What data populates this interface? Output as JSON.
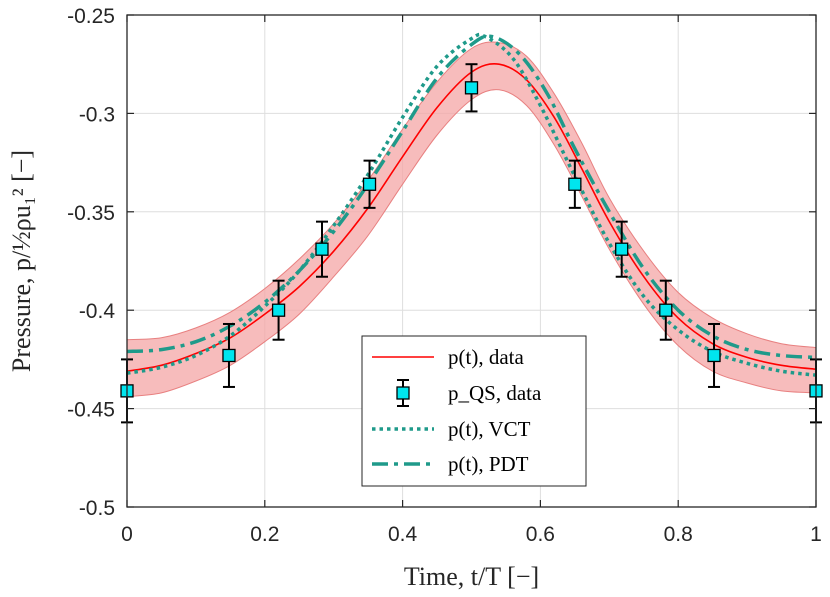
{
  "chart_data": {
    "type": "line",
    "xlabel": "Time, t/T [−]",
    "ylabel": "Pressure, p/½ρu₁² [−]",
    "xlim": [
      0,
      1
    ],
    "ylim": [
      -0.5,
      -0.25
    ],
    "xticks": [
      "0",
      "0.2",
      "0.4",
      "0.6",
      "0.8",
      "1"
    ],
    "yticks": [
      "-0.25",
      "-0.3",
      "-0.35",
      "-0.4",
      "-0.45",
      "-0.5"
    ],
    "grid": true,
    "legend_position": "bottom-center",
    "colors": {
      "data_line": "#ff0000",
      "band_fill": "#f4a5a5",
      "band_edge": "#e88080",
      "model": "#1f9a8a",
      "marker_face": "#00e5ee",
      "errorbar": "#000000"
    },
    "series": [
      {
        "name": "p(t), data",
        "style": "solid",
        "x": [
          0,
          0.05,
          0.1,
          0.15,
          0.2,
          0.25,
          0.3,
          0.35,
          0.4,
          0.45,
          0.5,
          0.54,
          0.58,
          0.62,
          0.66,
          0.7,
          0.75,
          0.8,
          0.85,
          0.9,
          0.95,
          1.0
        ],
        "y": [
          -0.431,
          -0.428,
          -0.422,
          -0.414,
          -0.402,
          -0.388,
          -0.37,
          -0.348,
          -0.322,
          -0.297,
          -0.279,
          -0.275,
          -0.283,
          -0.302,
          -0.328,
          -0.355,
          -0.383,
          -0.404,
          -0.417,
          -0.424,
          -0.428,
          -0.43
        ],
        "band_x": [
          0,
          0.05,
          0.1,
          0.15,
          0.2,
          0.25,
          0.3,
          0.35,
          0.4,
          0.45,
          0.5,
          0.54,
          0.58,
          0.62,
          0.66,
          0.7,
          0.75,
          0.8,
          0.85,
          0.9,
          0.95,
          1.0
        ],
        "band_upper": [
          -0.415,
          -0.414,
          -0.409,
          -0.401,
          -0.389,
          -0.374,
          -0.356,
          -0.334,
          -0.308,
          -0.284,
          -0.267,
          -0.264,
          -0.271,
          -0.29,
          -0.315,
          -0.343,
          -0.37,
          -0.391,
          -0.404,
          -0.412,
          -0.417,
          -0.419
        ],
        "band_lower": [
          -0.444,
          -0.442,
          -0.436,
          -0.428,
          -0.416,
          -0.402,
          -0.383,
          -0.362,
          -0.336,
          -0.311,
          -0.293,
          -0.288,
          -0.296,
          -0.316,
          -0.342,
          -0.369,
          -0.397,
          -0.418,
          -0.431,
          -0.437,
          -0.441,
          -0.442
        ]
      },
      {
        "name": "p_QS, data",
        "style": "markers",
        "x": [
          0,
          0.148,
          0.22,
          0.283,
          0.352,
          0.5,
          0.65,
          0.718,
          0.782,
          0.852,
          1.0
        ],
        "y": [
          -0.441,
          -0.423,
          -0.4,
          -0.369,
          -0.336,
          -0.287,
          -0.336,
          -0.369,
          -0.4,
          -0.423,
          -0.441
        ],
        "err": [
          0.016,
          0.016,
          0.015,
          0.014,
          0.012,
          0.012,
          0.012,
          0.014,
          0.015,
          0.016,
          0.016
        ]
      },
      {
        "name": "p(t), VCT",
        "style": "dotted",
        "x": [
          0,
          0.05,
          0.1,
          0.15,
          0.2,
          0.25,
          0.3,
          0.35,
          0.4,
          0.45,
          0.5,
          0.52,
          0.56,
          0.6,
          0.65,
          0.7,
          0.75,
          0.8,
          0.85,
          0.9,
          0.95,
          1.0
        ],
        "y": [
          -0.432,
          -0.429,
          -0.423,
          -0.413,
          -0.398,
          -0.38,
          -0.357,
          -0.331,
          -0.302,
          -0.276,
          -0.262,
          -0.261,
          -0.272,
          -0.296,
          -0.332,
          -0.366,
          -0.393,
          -0.41,
          -0.421,
          -0.427,
          -0.431,
          -0.433
        ]
      },
      {
        "name": "p(t), PDT",
        "style": "dashdot",
        "x": [
          0,
          0.05,
          0.1,
          0.15,
          0.2,
          0.25,
          0.3,
          0.35,
          0.4,
          0.45,
          0.5,
          0.53,
          0.57,
          0.61,
          0.65,
          0.7,
          0.75,
          0.8,
          0.85,
          0.9,
          0.95,
          1.0
        ],
        "y": [
          -0.421,
          -0.42,
          -0.416,
          -0.408,
          -0.396,
          -0.38,
          -0.36,
          -0.336,
          -0.309,
          -0.282,
          -0.265,
          -0.261,
          -0.27,
          -0.29,
          -0.318,
          -0.35,
          -0.379,
          -0.4,
          -0.413,
          -0.42,
          -0.423,
          -0.424
        ]
      }
    ],
    "legend": [
      "p(t), data",
      "p_QS, data",
      "p(t), VCT",
      "p(t), PDT"
    ]
  }
}
